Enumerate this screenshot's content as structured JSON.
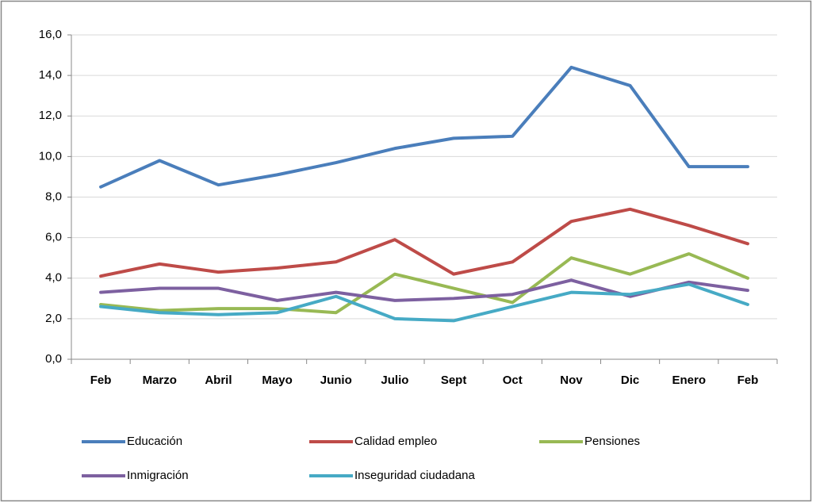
{
  "chart_data": {
    "type": "line",
    "categories": [
      "Feb",
      "Marzo",
      "Abril",
      "Mayo",
      "Junio",
      "Julio",
      "Sept",
      "Oct",
      "Nov",
      "Dic",
      "Enero",
      "Feb"
    ],
    "series": [
      {
        "name": "Educación",
        "color": "#4a7ebb",
        "values": [
          8.5,
          9.8,
          8.6,
          9.1,
          9.7,
          10.4,
          10.9,
          11.0,
          14.4,
          13.5,
          9.5,
          9.5
        ]
      },
      {
        "name": "Calidad empleo",
        "color": "#be4b48",
        "values": [
          4.1,
          4.7,
          4.3,
          4.5,
          4.8,
          5.9,
          4.2,
          4.8,
          6.8,
          7.4,
          6.6,
          5.7
        ]
      },
      {
        "name": "Pensiones",
        "color": "#98b954",
        "values": [
          2.7,
          2.4,
          2.5,
          2.5,
          2.3,
          4.2,
          3.5,
          2.8,
          5.0,
          4.2,
          5.2,
          4.0
        ]
      },
      {
        "name": "Inmigración",
        "color": "#7d60a0",
        "values": [
          3.3,
          3.5,
          3.5,
          2.9,
          3.3,
          2.9,
          3.0,
          3.2,
          3.9,
          3.1,
          3.8,
          3.4
        ]
      },
      {
        "name": "Inseguridad ciudadana",
        "color": "#46aac5",
        "values": [
          2.6,
          2.3,
          2.2,
          2.3,
          3.1,
          2.0,
          1.9,
          2.6,
          3.3,
          3.2,
          3.7,
          2.7
        ]
      }
    ],
    "ylim": [
      0,
      16
    ],
    "yticks": [
      {
        "value": 0,
        "label": "0,0"
      },
      {
        "value": 2,
        "label": "2,0"
      },
      {
        "value": 4,
        "label": "4,0"
      },
      {
        "value": 6,
        "label": "6,0"
      },
      {
        "value": 8,
        "label": "8,0"
      },
      {
        "value": 10,
        "label": "10,0"
      },
      {
        "value": 12,
        "label": "12,0"
      },
      {
        "value": 14,
        "label": "14,0"
      },
      {
        "value": 16,
        "label": "16,0"
      }
    ],
    "grid": true,
    "legend": "bottom"
  }
}
